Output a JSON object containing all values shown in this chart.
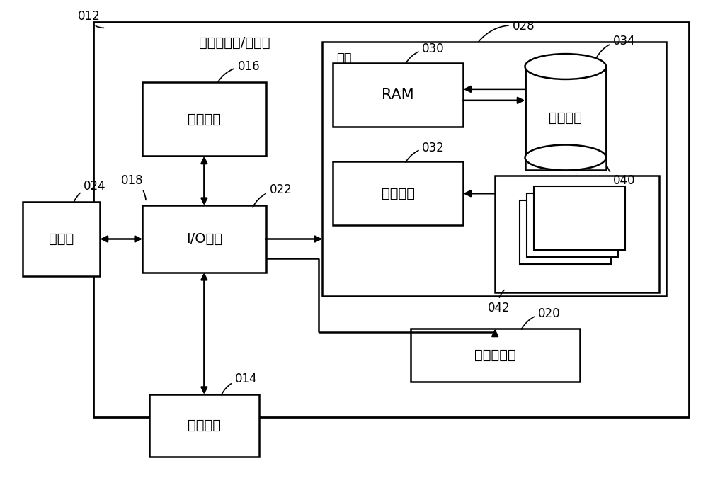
{
  "bg_color": "#ffffff",
  "line_color": "#000000",
  "font_color": "#000000",
  "title": "计算机系统/服务器",
  "label_processing": "处理单元",
  "label_io": "I/O接口",
  "label_ram": "RAM",
  "label_cache": "高速缓存",
  "label_storage": "存储系统",
  "label_display": "显示器",
  "label_network": "网络适配器",
  "label_external": "外部设备",
  "label_memory": "内存",
  "ref_012": "012",
  "ref_016": "016",
  "ref_018": "018",
  "ref_022": "022",
  "ref_024": "024",
  "ref_028": "028",
  "ref_030": "030",
  "ref_032": "032",
  "ref_034": "034",
  "ref_040": "040",
  "ref_042": "042",
  "ref_014": "014",
  "ref_020": "020"
}
